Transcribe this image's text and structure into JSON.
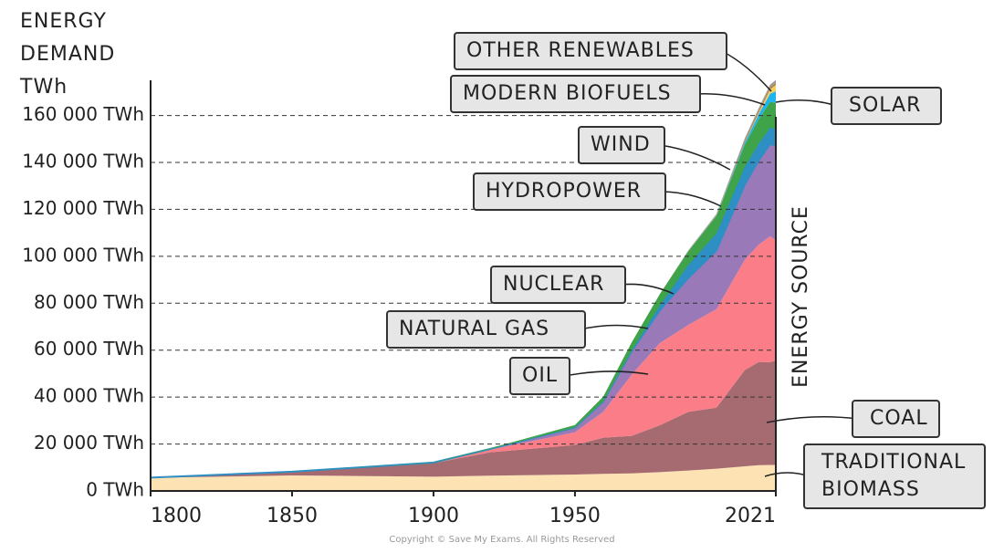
{
  "chart_data": {
    "type": "stacked_area",
    "y_label": "ENERGY DEMAND TWh",
    "y2_label": "ENERGY SOURCE",
    "footer": "Copyright © Save My Exams. All Rights Reserved",
    "x": [
      1800,
      1850,
      1900,
      1920,
      1950,
      1960,
      1970,
      1980,
      1990,
      2000,
      2010,
      2015,
      2019,
      2021
    ],
    "xlim": [
      1800,
      2021
    ],
    "xticks": [
      1800,
      1850,
      1900,
      1950,
      2021
    ],
    "ylim": [
      0,
      175000
    ],
    "yticks": [
      {
        "value": 0,
        "label": "0 TWh"
      },
      {
        "value": 20000,
        "label": "20 000 TWh"
      },
      {
        "value": 40000,
        "label": "40 000 TWh"
      },
      {
        "value": 60000,
        "label": "60 000 TWh"
      },
      {
        "value": 80000,
        "label": "80 000 TWh"
      },
      {
        "value": 100000,
        "label": "100 000 TWh"
      },
      {
        "value": 120000,
        "label": "120 000 TWh"
      },
      {
        "value": 140000,
        "label": "140 000 TWh"
      },
      {
        "value": 160000,
        "label": "160 000 TWh"
      }
    ],
    "grid": true,
    "series": [
      {
        "name": "TRADITIONAL BIOMASS",
        "color": "#fde2b3",
        "values": [
          5600,
          6600,
          6100,
          6500,
          7000,
          7300,
          7500,
          8000,
          8700,
          9500,
          10500,
          11000,
          11100,
          11100
        ]
      },
      {
        "name": "COAL",
        "color": "#a66b70",
        "values": [
          100,
          1600,
          5700,
          10000,
          12600,
          15400,
          16000,
          20000,
          25000,
          26000,
          41000,
          44000,
          43800,
          44500
        ]
      },
      {
        "name": "OIL",
        "color": "#fb7d88",
        "values": [
          0,
          0,
          200,
          1100,
          5400,
          11000,
          26000,
          35000,
          37000,
          42000,
          47000,
          50000,
          53600,
          51200
        ]
      },
      {
        "name": "NATURAL GAS",
        "color": "#9a79b8",
        "values": [
          0,
          0,
          100,
          300,
          2100,
          4500,
          10000,
          14000,
          20000,
          25000,
          32000,
          36000,
          39300,
          40400
        ]
      },
      {
        "name": "NUCLEAR",
        "color": "#2d8fc4",
        "values": [
          0,
          0,
          0,
          0,
          0,
          0,
          200,
          2000,
          5500,
          7200,
          7500,
          7000,
          7000,
          7000
        ]
      },
      {
        "name": "HYDROPOWER",
        "color": "#3fa34a",
        "values": [
          0,
          0,
          100,
          300,
          1000,
          2000,
          3500,
          4900,
          5800,
          7500,
          9500,
          10500,
          11000,
          11200
        ]
      },
      {
        "name": "WIND",
        "color": "#1db4ef",
        "values": [
          0,
          0,
          0,
          0,
          0,
          0,
          0,
          0,
          10,
          100,
          900,
          2200,
          3500,
          4900
        ]
      },
      {
        "name": "SOLAR",
        "color": "#f2d25a",
        "values": [
          0,
          0,
          0,
          0,
          0,
          0,
          0,
          0,
          0,
          10,
          90,
          600,
          1800,
          2700
        ]
      },
      {
        "name": "MODERN BIOFUELS",
        "color": "#b08456",
        "values": [
          0,
          0,
          0,
          0,
          0,
          0,
          0,
          0,
          100,
          200,
          1000,
          1100,
          1100,
          1100
        ]
      },
      {
        "name": "OTHER RENEWABLES",
        "color": "#9c9c9c",
        "values": [
          0,
          0,
          0,
          0,
          0,
          0,
          0,
          0,
          300,
          500,
          700,
          900,
          1000,
          1050
        ]
      }
    ]
  }
}
